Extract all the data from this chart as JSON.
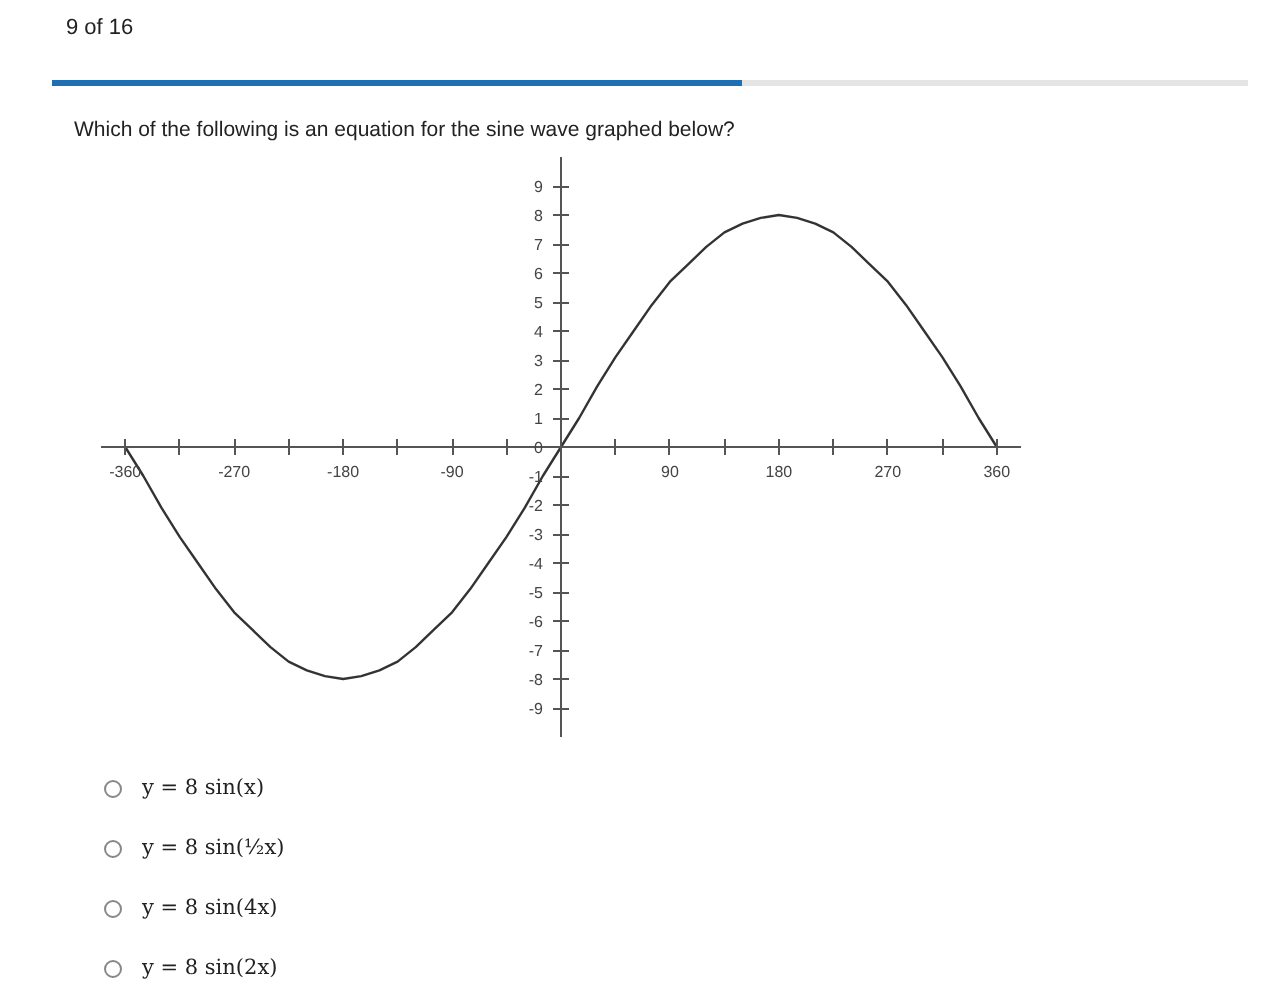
{
  "chart_data": {
    "type": "line",
    "title": "Which of the following is an equation for the sine wave graphed below?",
    "annotations": [
      "9 of 16",
      "y = 8 sin(x)",
      "y = 8 sin(½x)",
      "y = 8 sin(4x)",
      "y = 8 sin(2x)"
    ],
    "x": [
      -360,
      -345,
      -330,
      -315,
      -300,
      -285,
      -270,
      -255,
      -240,
      -225,
      -210,
      -195,
      -180,
      -165,
      -150,
      -135,
      -120,
      -105,
      -90,
      -75,
      -60,
      -45,
      -30,
      -15,
      0,
      15,
      30,
      45,
      60,
      75,
      90,
      105,
      120,
      135,
      150,
      165,
      180,
      195,
      210,
      225,
      240,
      255,
      270,
      285,
      300,
      315,
      330,
      345,
      360
    ],
    "series": [
      {
        "color": "#333333",
        "values": [
          0,
          -1.0,
          -2.1,
          -3.1,
          -4.0,
          -4.9,
          -5.7,
          -6.3,
          -6.9,
          -7.4,
          -7.7,
          -7.9,
          -8.0,
          -7.9,
          -7.7,
          -7.4,
          -6.9,
          -6.3,
          -5.7,
          -4.9,
          -4.0,
          -3.1,
          -2.1,
          -1.0,
          0,
          1.0,
          2.1,
          3.1,
          4.0,
          4.9,
          5.7,
          6.3,
          6.9,
          7.4,
          7.7,
          7.9,
          8.0,
          7.9,
          7.7,
          7.4,
          6.9,
          6.3,
          5.7,
          4.9,
          4.0,
          3.1,
          2.1,
          1.0,
          0
        ]
      }
    ],
    "xlim": [
      -380,
      380
    ],
    "ylim": [
      -10,
      10
    ],
    "xticks": [
      -360,
      {
        "value": -315,
        "label": null
      },
      -270,
      {
        "value": -225,
        "label": null
      },
      -180,
      {
        "value": -135,
        "label": null
      },
      -90,
      {
        "value": -45,
        "label": null
      },
      {
        "value": 0,
        "label": null
      },
      {
        "value": 45,
        "label": null
      },
      90,
      {
        "value": 135,
        "label": null
      },
      180,
      {
        "value": 225,
        "label": null
      },
      270,
      {
        "value": 315,
        "label": null
      },
      360
    ],
    "yticks": [
      -9,
      -8,
      -7,
      -6,
      -5,
      -4,
      -3,
      -2,
      -1,
      0,
      1,
      2,
      3,
      4,
      5,
      6,
      7,
      8,
      9
    ],
    "grid": false,
    "marker": "none",
    "line_style": "solid"
  }
}
